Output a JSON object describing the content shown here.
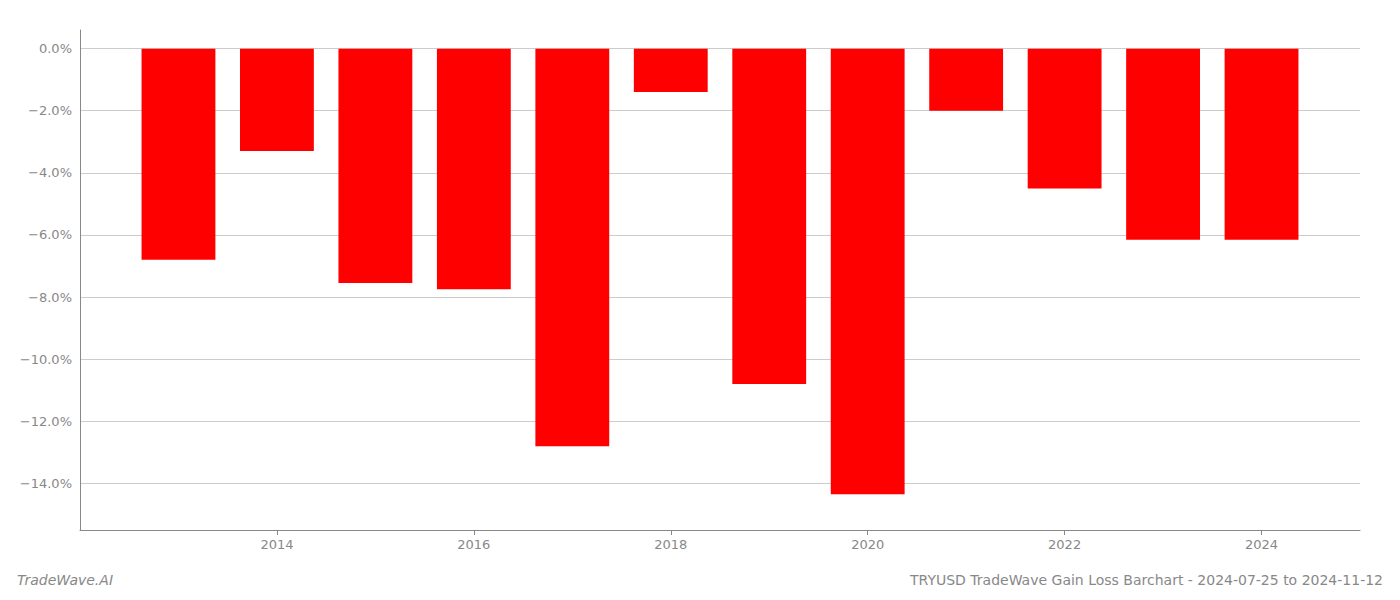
{
  "chart_data": {
    "type": "bar",
    "title": "TRYUSD TradeWave Gain Loss Barchart - 2024-07-25 to 2024-11-12",
    "annotations": [
      "TradeWave.AI"
    ],
    "x": [
      2013,
      2014,
      2015,
      2016,
      2017,
      2018,
      2019,
      2020,
      2021,
      2022,
      2023,
      2024
    ],
    "values": [
      -6.8,
      -3.3,
      -7.55,
      -7.75,
      -12.8,
      -1.4,
      -10.8,
      -14.35,
      -2.0,
      -4.5,
      -6.15,
      -6.15
    ],
    "color": "#ff0000",
    "xlim": [
      2012,
      2025
    ],
    "xticks": [
      2014,
      2016,
      2018,
      2020,
      2022,
      2024
    ],
    "ylim": [
      -15.5,
      0.6
    ],
    "yticks": [
      {
        "value": 0.0,
        "label": "0.0%"
      },
      {
        "value": -2.0,
        "label": "−2.0%"
      },
      {
        "value": -4.0,
        "label": "−4.0%"
      },
      {
        "value": -6.0,
        "label": "−6.0%"
      },
      {
        "value": -8.0,
        "label": "−8.0%"
      },
      {
        "value": -10.0,
        "label": "−10.0%"
      },
      {
        "value": -12.0,
        "label": "−12.0%"
      },
      {
        "value": -14.0,
        "label": "−14.0%"
      }
    ],
    "grid": true
  }
}
